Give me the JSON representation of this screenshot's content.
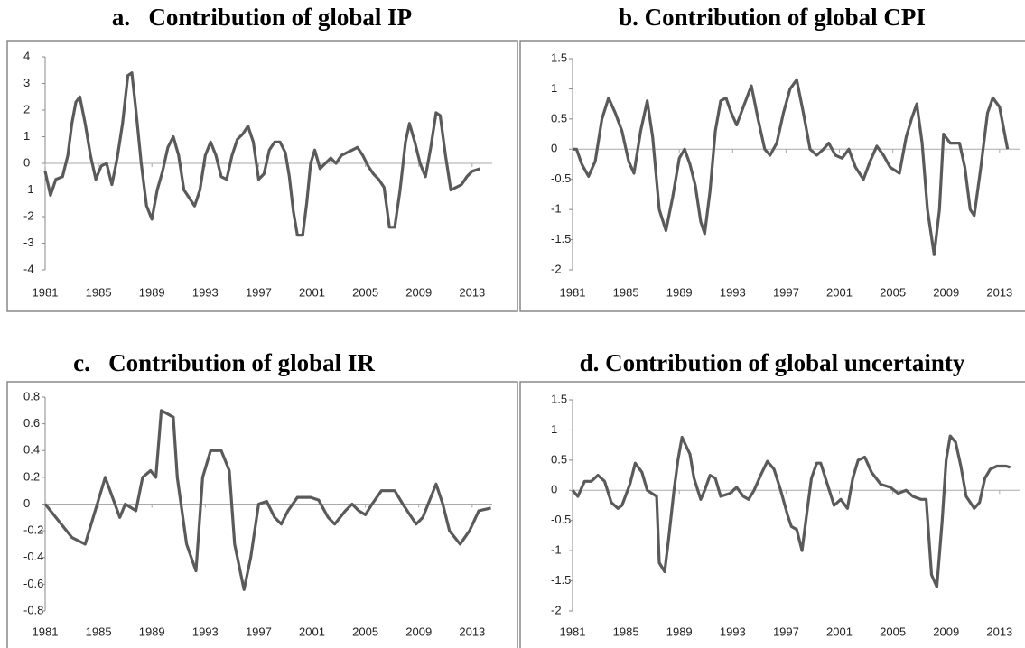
{
  "chart_data": [
    {
      "type": "line",
      "title": "a.   Contribution of global IP",
      "xlim": [
        1981,
        2014.5
      ],
      "xticks": [
        1981,
        1985,
        1989,
        1993,
        1997,
        2001,
        2005,
        2009,
        2013
      ],
      "ylim": [
        -4,
        4
      ],
      "yticks": [
        -4,
        -3,
        -2,
        -1,
        0,
        1,
        2,
        3,
        4
      ],
      "series": [
        {
          "color": "#5a5a5a",
          "x": [
            1981,
            1981.4,
            1981.8,
            1982.3,
            1982.7,
            1983.0,
            1983.3,
            1983.6,
            1984.0,
            1984.4,
            1984.8,
            1985.2,
            1985.6,
            1986.0,
            1986.4,
            1986.8,
            1987.2,
            1987.5,
            1987.8,
            1988.2,
            1988.6,
            1989.0,
            1989.4,
            1989.8,
            1990.2,
            1990.6,
            1991.0,
            1991.4,
            1991.8,
            1992.2,
            1992.6,
            1993.0,
            1993.4,
            1993.8,
            1994.2,
            1994.6,
            1995.0,
            1995.4,
            1995.8,
            1996.2,
            1996.6,
            1997.0,
            1997.4,
            1997.8,
            1998.2,
            1998.6,
            1999.0,
            1999.3,
            1999.6,
            1999.9,
            2000.3,
            2000.6,
            2000.9,
            2001.2,
            2001.6,
            2002.0,
            2002.4,
            2002.8,
            2003.2,
            2003.6,
            2004.0,
            2004.4,
            2004.8,
            2005.2,
            2005.6,
            2006.0,
            2006.4,
            2006.8,
            2007.2,
            2007.6,
            2008.0,
            2008.3,
            2008.7,
            2009.1,
            2009.5,
            2009.9,
            2010.3,
            2010.6,
            2011.0,
            2011.4,
            2011.8,
            2012.2,
            2012.6,
            2013.0,
            2013.6
          ],
          "values": [
            -0.3,
            -1.2,
            -0.6,
            -0.5,
            0.3,
            1.5,
            2.3,
            2.5,
            1.5,
            0.3,
            -0.6,
            -0.1,
            0,
            -0.8,
            0.2,
            1.5,
            3.3,
            3.4,
            2.0,
            0,
            -1.6,
            -2.1,
            -1.0,
            -0.3,
            0.6,
            1.0,
            0.3,
            -1.0,
            -1.3,
            -1.6,
            -1.0,
            0.3,
            0.8,
            0.3,
            -0.5,
            -0.6,
            0.3,
            0.9,
            1.1,
            1.4,
            0.8,
            -0.6,
            -0.4,
            0.5,
            0.8,
            0.8,
            0.4,
            -0.5,
            -1.8,
            -2.7,
            -2.7,
            -1.5,
            0,
            0.5,
            -0.2,
            0,
            0.2,
            0,
            0.3,
            0.4,
            0.5,
            0.6,
            0.3,
            -0.1,
            -0.4,
            -0.6,
            -0.9,
            -2.4,
            -2.4,
            -1.0,
            0.8,
            1.5,
            0.8,
            0,
            -0.5,
            0.6,
            1.9,
            1.8,
            0.3,
            -1.0,
            -0.9,
            -0.8,
            -0.5,
            -0.3,
            -0.2
          ]
        }
      ]
    },
    {
      "type": "line",
      "title": "b. Contribution of global CPI",
      "xlim": [
        1981,
        2014.5
      ],
      "xticks": [
        1981,
        1985,
        1989,
        1993,
        1997,
        2001,
        2005,
        2009,
        2013
      ],
      "ylim": [
        -2,
        1.5
      ],
      "yticks": [
        -2,
        -1.5,
        -1,
        -0.5,
        0,
        0.5,
        1,
        1.5
      ],
      "series": [
        {
          "color": "#5a5a5a",
          "x": [
            1981,
            1981.3,
            1981.7,
            1982.2,
            1982.7,
            1983.2,
            1983.7,
            1984.2,
            1984.7,
            1985.2,
            1985.6,
            1986.1,
            1986.6,
            1987.0,
            1987.5,
            1988.0,
            1988.5,
            1989.0,
            1989.4,
            1989.8,
            1990.2,
            1990.6,
            1990.9,
            1991.3,
            1991.7,
            1992.1,
            1992.5,
            1992.9,
            1993.3,
            1993.8,
            1994.4,
            1994.9,
            1995.4,
            1995.8,
            1996.3,
            1996.8,
            1997.3,
            1997.8,
            1998.3,
            1998.8,
            1999.3,
            1999.8,
            2000.2,
            2000.7,
            2001.2,
            2001.7,
            2002.2,
            2002.8,
            2003.3,
            2003.8,
            2004.3,
            2004.8,
            2005.5,
            2006.0,
            2006.4,
            2006.8,
            2007.2,
            2007.6,
            2008.1,
            2008.5,
            2008.8,
            2009.3,
            2010.0,
            2010.4,
            2010.8,
            2011.1,
            2011.6,
            2012.1,
            2012.5,
            2013.0,
            2013.6
          ],
          "values": [
            0,
            0,
            -0.25,
            -0.45,
            -0.2,
            0.5,
            0.85,
            0.6,
            0.3,
            -0.2,
            -0.4,
            0.3,
            0.8,
            0.2,
            -1.0,
            -1.35,
            -0.8,
            -0.15,
            0,
            -0.25,
            -0.6,
            -1.2,
            -1.4,
            -0.7,
            0.3,
            0.8,
            0.85,
            0.6,
            0.4,
            0.7,
            1.05,
            0.5,
            0,
            -0.1,
            0.1,
            0.6,
            1.0,
            1.15,
            0.6,
            0,
            -0.1,
            0,
            0.1,
            -0.1,
            -0.15,
            0,
            -0.3,
            -0.5,
            -0.2,
            0.05,
            -0.1,
            -0.3,
            -0.4,
            0.2,
            0.5,
            0.75,
            0.1,
            -1.0,
            -1.75,
            -1.0,
            0.25,
            0.1,
            0.1,
            -0.3,
            -1.0,
            -1.1,
            -0.3,
            0.6,
            0.85,
            0.7,
            0
          ]
        }
      ]
    },
    {
      "type": "line",
      "title": "c.   Contribution of global IR",
      "xlim": [
        1981,
        2014.5
      ],
      "xticks": [
        1981,
        1985,
        1989,
        1993,
        1997,
        2001,
        2005,
        2009,
        2013
      ],
      "ylim": [
        -0.8,
        0.8
      ],
      "yticks": [
        -0.8,
        -0.6,
        -0.4,
        -0.2,
        0,
        0.2,
        0.4,
        0.6,
        0.8
      ],
      "series": [
        {
          "color": "#5a5a5a",
          "x": [
            1981,
            1983.0,
            1984.0,
            1985.5,
            1986.6,
            1987.0,
            1987.8,
            1988.3,
            1988.9,
            1989.3,
            1989.7,
            1990.6,
            1990.9,
            1991.6,
            1992.3,
            1992.8,
            1993.4,
            1994.2,
            1994.8,
            1995.2,
            1995.9,
            1996.4,
            1997.0,
            1997.6,
            1998.2,
            1998.7,
            1999.2,
            1999.9,
            2000.9,
            2001.5,
            2002.2,
            2002.7,
            2003.5,
            2004.0,
            2004.5,
            2005.0,
            2005.5,
            2006.2,
            2007.2,
            2007.8,
            2008.8,
            2009.3,
            2010.3,
            2010.8,
            2011.3,
            2012.1,
            2012.8,
            2013.5,
            2014.4
          ],
          "values": [
            0,
            -0.25,
            -0.3,
            0.2,
            -0.1,
            0,
            -0.05,
            0.2,
            0.25,
            0.2,
            0.7,
            0.65,
            0.2,
            -0.3,
            -0.5,
            0.2,
            0.4,
            0.4,
            0.25,
            -0.3,
            -0.64,
            -0.4,
            0,
            0.02,
            -0.1,
            -0.15,
            -0.05,
            0.05,
            0.05,
            0.03,
            -0.1,
            -0.15,
            -0.05,
            0,
            -0.05,
            -0.08,
            0,
            0.1,
            0.1,
            0,
            -0.15,
            -0.1,
            0.15,
            0,
            -0.2,
            -0.3,
            -0.2,
            -0.05,
            -0.03
          ]
        }
      ]
    },
    {
      "type": "line",
      "title": "d. Contribution of global uncertainty",
      "xlim": [
        1981,
        2014.5
      ],
      "xticks": [
        1981,
        1985,
        1989,
        1993,
        1997,
        2001,
        2005,
        2009,
        2013
      ],
      "ylim": [
        -2,
        1.5
      ],
      "yticks": [
        -2,
        -1.5,
        -1,
        -0.5,
        0,
        0.5,
        1,
        1.5
      ],
      "series": [
        {
          "color": "#5a5a5a",
          "x": [
            1981,
            1981.4,
            1981.9,
            1982.4,
            1982.9,
            1983.4,
            1983.9,
            1984.4,
            1984.7,
            1985.3,
            1985.7,
            1986.2,
            1986.6,
            1987.3,
            1987.5,
            1987.9,
            1988.2,
            1988.6,
            1988.9,
            1989.2,
            1989.8,
            1990.1,
            1990.6,
            1990.9,
            1991.3,
            1991.7,
            1992.1,
            1992.8,
            1993.3,
            1993.8,
            1994.2,
            1994.6,
            1995.1,
            1995.6,
            1996.1,
            1996.6,
            1997.1,
            1997.4,
            1997.8,
            1998.2,
            1998.6,
            1998.9,
            1999.3,
            1999.6,
            2000.1,
            2000.6,
            2001.1,
            2001.6,
            2002.0,
            2002.4,
            2002.9,
            2003.4,
            2004.1,
            2004.8,
            2005.4,
            2006.0,
            2006.5,
            2007.1,
            2007.5,
            2007.9,
            2008.3,
            2008.7,
            2009.0,
            2009.3,
            2009.7,
            2010.1,
            2010.5,
            2011.1,
            2011.5,
            2011.9,
            2012.3,
            2012.8,
            2013.5,
            2013.8
          ],
          "values": [
            0,
            -0.1,
            0.15,
            0.15,
            0.25,
            0.15,
            -0.2,
            -0.3,
            -0.25,
            0.1,
            0.45,
            0.3,
            0,
            -0.1,
            -1.2,
            -1.35,
            -0.8,
            0,
            0.5,
            0.88,
            0.6,
            0.2,
            -0.15,
            0,
            0.25,
            0.2,
            -0.1,
            -0.05,
            0.05,
            -0.1,
            -0.15,
            0,
            0.25,
            0.48,
            0.35,
            0,
            -0.4,
            -0.6,
            -0.65,
            -1.0,
            -0.3,
            0.2,
            0.45,
            0.45,
            0.1,
            -0.25,
            -0.15,
            -0.3,
            0.2,
            0.5,
            0.55,
            0.3,
            0.1,
            0.05,
            -0.05,
            0,
            -0.1,
            -0.15,
            -0.15,
            -1.4,
            -1.6,
            -0.5,
            0.5,
            0.9,
            0.8,
            0.4,
            -0.1,
            -0.3,
            -0.2,
            0.2,
            0.35,
            0.4,
            0.4,
            0.38
          ]
        }
      ]
    }
  ]
}
